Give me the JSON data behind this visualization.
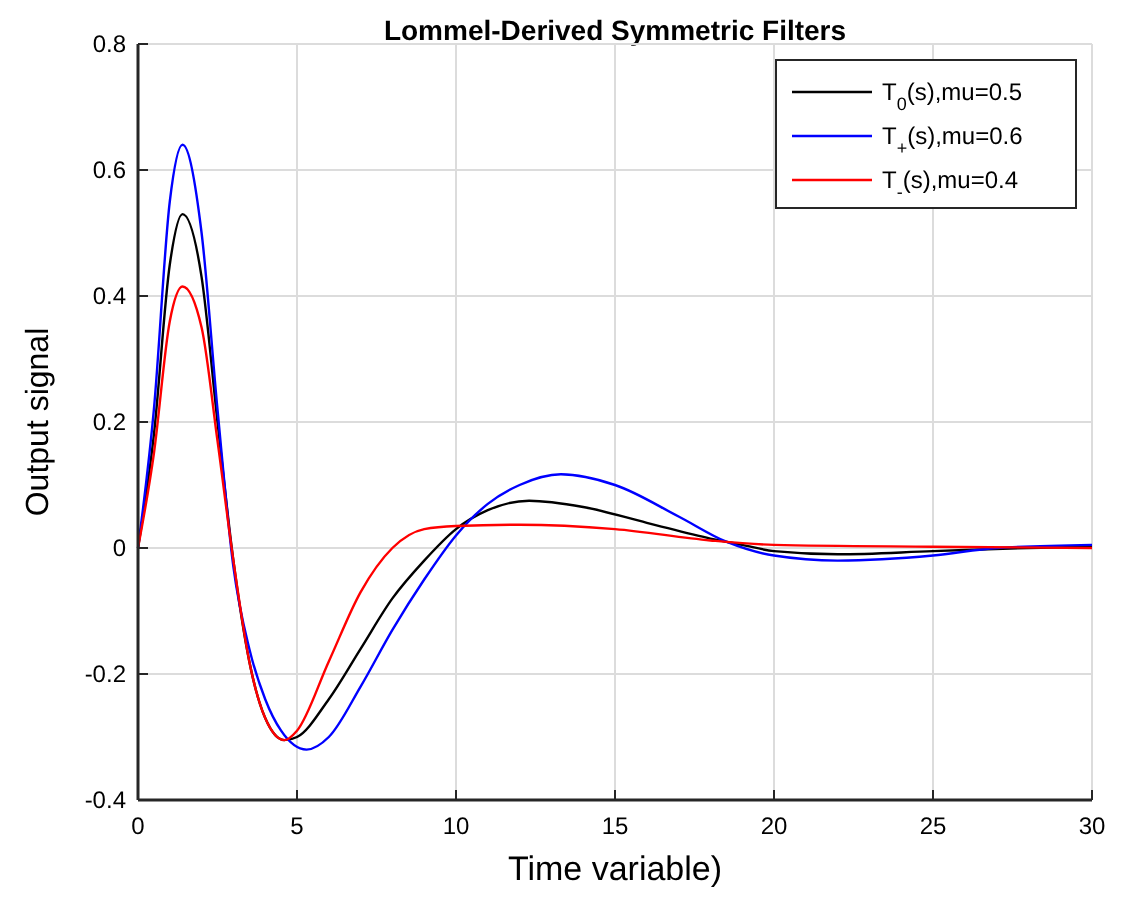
{
  "chart_data": {
    "type": "line",
    "title": "Lommel-Derived Symmetric Filters",
    "xlabel": "Time variable)",
    "ylabel": "Output signal",
    "xlim": [
      0,
      30
    ],
    "xticks": [
      0,
      5,
      10,
      15,
      20,
      25,
      30
    ],
    "ylim": [
      -0.4,
      0.8
    ],
    "yticks": [
      -0.4,
      -0.2,
      0,
      0.2,
      0.4,
      0.6,
      0.8
    ],
    "grid": true,
    "legend": "top right",
    "line_style": "solid",
    "marker": "none",
    "series": [
      {
        "name": "T$_{0}$(s),mu=0.5",
        "color": "#000000",
        "x": [
          0,
          0.5,
          1,
          1.4,
          2,
          2.5,
          3,
          3.5,
          4,
          4.6,
          5,
          6,
          7,
          8,
          9,
          10,
          11,
          12.3,
          14,
          16,
          18,
          19,
          20,
          22,
          25,
          28,
          30
        ],
        "values": [
          0,
          0.18,
          0.45,
          0.53,
          0.43,
          0.2,
          -0.02,
          -0.18,
          -0.27,
          -0.305,
          -0.3,
          -0.24,
          -0.16,
          -0.08,
          -0.02,
          0.03,
          0.06,
          0.075,
          0.065,
          0.04,
          0.015,
          0.005,
          -0.005,
          -0.01,
          -0.005,
          0,
          0.002
        ]
      },
      {
        "name": "T$_{+}$(s),mu=0.6",
        "color": "#0000ff",
        "x": [
          0,
          0.5,
          1,
          1.4,
          2,
          2.5,
          3,
          3.5,
          4,
          4.5,
          5.3,
          6,
          7,
          8,
          9,
          10,
          11,
          12,
          13.3,
          15,
          17,
          18.5,
          20,
          22,
          25,
          27,
          30
        ],
        "values": [
          0,
          0.22,
          0.55,
          0.64,
          0.5,
          0.22,
          -0.03,
          -0.16,
          -0.24,
          -0.29,
          -0.32,
          -0.3,
          -0.22,
          -0.13,
          -0.05,
          0.02,
          0.07,
          0.1,
          0.117,
          0.1,
          0.05,
          0.01,
          -0.012,
          -0.02,
          -0.012,
          0,
          0.005
        ]
      },
      {
        "name": "T$_{-}$(s),mu=0.4",
        "color": "#ff0000",
        "x": [
          0,
          0.5,
          1,
          1.4,
          2,
          2.5,
          3,
          3.5,
          4,
          4.6,
          5,
          6,
          7,
          8,
          9,
          10,
          12,
          15,
          18,
          20,
          25,
          30
        ],
        "values": [
          0,
          0.15,
          0.36,
          0.415,
          0.35,
          0.17,
          -0.02,
          -0.18,
          -0.27,
          -0.305,
          -0.29,
          -0.18,
          -0.07,
          0,
          0.03,
          0.035,
          0.037,
          0.03,
          0.012,
          0.005,
          0.002,
          0
        ]
      }
    ]
  }
}
